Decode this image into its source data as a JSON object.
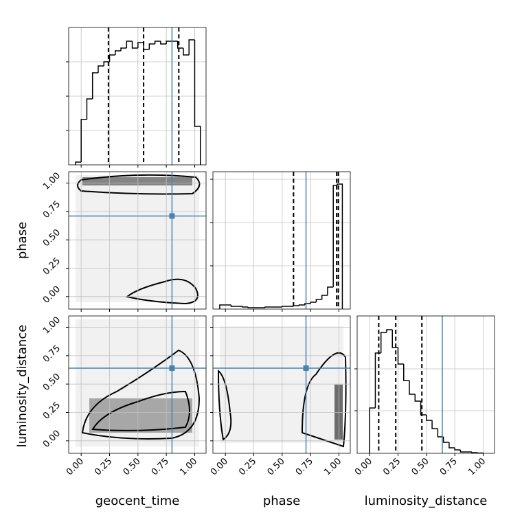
{
  "chart_data": {
    "type": "corner",
    "parameters": [
      "geocent_time",
      "phase",
      "luminosity_distance"
    ],
    "lim": [
      -0.11,
      1.1
    ],
    "ticks": [
      {
        "value": 0,
        "label": "0.00"
      },
      {
        "value": 0.25,
        "label": "0.25"
      },
      {
        "value": 0.5,
        "label": "0.50"
      },
      {
        "value": 0.75,
        "label": "0.75"
      },
      {
        "value": 1,
        "label": "1.00"
      }
    ],
    "truths": [
      0.8,
      0.71,
      0.64
    ],
    "truth_color": "#4682b4",
    "line_color": "#000000",
    "grid": true,
    "quantiles": [
      [
        0.24,
        0.55,
        0.86
      ],
      [
        0.6,
        0.98,
        0.995
      ],
      [
        0.08,
        0.23,
        0.46
      ]
    ],
    "histograms": [
      {
        "bins": [
          -0.05,
          0,
          0.05,
          0.1,
          0.15,
          0.2,
          0.25,
          0.3,
          0.35,
          0.4,
          0.45,
          0.5,
          0.55,
          0.6,
          0.65,
          0.7,
          0.75,
          0.8,
          0.85,
          0.9,
          0.95,
          1.0,
          1.05
        ],
        "values": [
          0.02,
          0.33,
          0.48,
          0.67,
          0.72,
          0.75,
          0.8,
          0.83,
          0.85,
          0.9,
          0.85,
          0.89,
          0.84,
          0.88,
          0.9,
          0.88,
          0.9,
          0.9,
          0.85,
          0.8,
          0.91,
          0.28
        ],
        "ylim": [
          0,
          1
        ],
        "yticks": [
          0.25,
          0.5,
          0.75
        ]
      },
      {
        "bins": [
          -0.05,
          0,
          0.05,
          0.1,
          0.15,
          0.2,
          0.25,
          0.3,
          0.35,
          0.4,
          0.45,
          0.5,
          0.55,
          0.6,
          0.65,
          0.7,
          0.75,
          0.8,
          0.85,
          0.9,
          0.95,
          0.985,
          1.03
        ],
        "values": [
          0.03,
          0.03,
          0.02,
          0.02,
          0.015,
          0.01,
          0.01,
          0.01,
          0.015,
          0.015,
          0.015,
          0.02,
          0.02,
          0.025,
          0.03,
          0.04,
          0.05,
          0.07,
          0.1,
          0.16,
          0.9,
          0.91
        ],
        "ylim": [
          0,
          1
        ],
        "yticks": [
          0.315,
          0.63,
          0.945
        ]
      },
      {
        "bins": [
          0,
          0.05,
          0.1,
          0.15,
          0.2,
          0.25,
          0.3,
          0.35,
          0.4,
          0.45,
          0.5,
          0.55,
          0.6,
          0.65,
          0.7,
          0.75,
          0.8,
          0.85,
          0.9,
          0.95,
          1.0
        ],
        "values": [
          0.33,
          0.73,
          0.88,
          0.9,
          0.77,
          0.65,
          0.53,
          0.43,
          0.38,
          0.28,
          0.24,
          0.18,
          0.12,
          0.08,
          0.04,
          0.025,
          0.01,
          0.01,
          0.005,
          0.002
        ],
        "ylim": [
          0,
          1
        ],
        "yticks": [
          0.31,
          0.615
        ]
      }
    ]
  }
}
